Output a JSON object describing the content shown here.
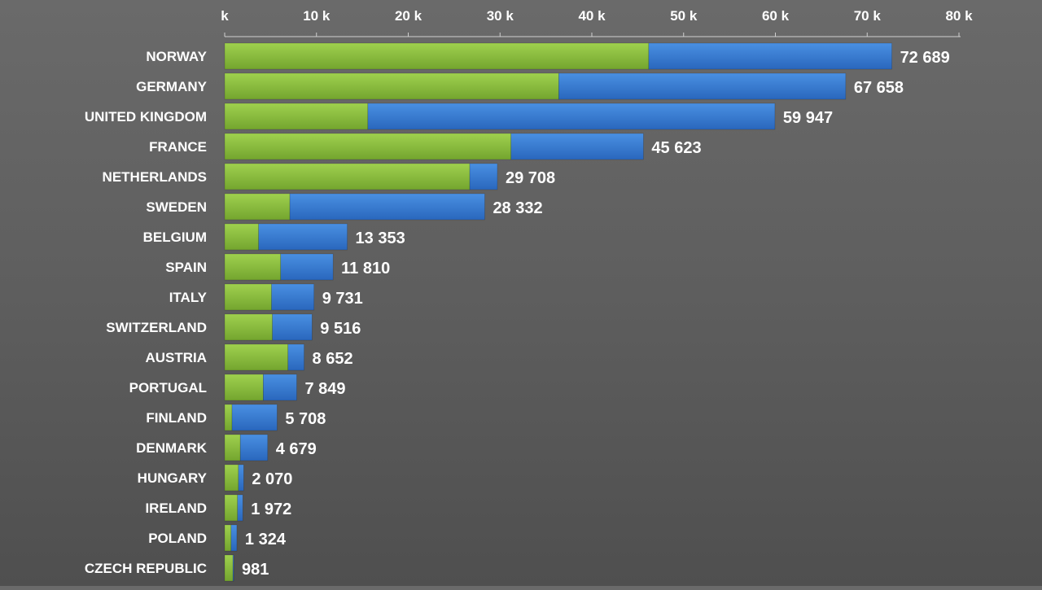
{
  "chart_data": {
    "type": "bar",
    "orientation": "horizontal",
    "stacked": true,
    "xlim": [
      0,
      80000
    ],
    "x_ticks": [
      0,
      10000,
      20000,
      30000,
      40000,
      50000,
      60000,
      70000,
      80000
    ],
    "x_tick_labels": [
      "k",
      "10 k",
      "20 k",
      "30 k",
      "40 k",
      "50 k",
      "60 k",
      "70 k",
      "80 k"
    ],
    "categories": [
      "NORWAY",
      "GERMANY",
      "UNITED KINGDOM",
      "FRANCE",
      "NETHERLANDS",
      "SWEDEN",
      "BELGIUM",
      "SPAIN",
      "ITALY",
      "SWITZERLAND",
      "AUSTRIA",
      "PORTUGAL",
      "FINLAND",
      "DENMARK",
      "HUNGARY",
      "IRELAND",
      "POLAND",
      "CZECH REPUBLIC"
    ],
    "series": [
      {
        "color": "#8cbf3f",
        "values": [
          46200,
          36400,
          15600,
          31200,
          26700,
          7100,
          3700,
          6100,
          5100,
          5200,
          6900,
          4200,
          800,
          1700,
          1500,
          1400,
          700,
          900
        ]
      },
      {
        "color": "#3a7fd5",
        "values": [
          26489,
          31258,
          44347,
          14423,
          3008,
          21232,
          9653,
          5710,
          4631,
          4316,
          1752,
          3649,
          4908,
          2979,
          570,
          572,
          624,
          81
        ]
      }
    ],
    "totals": [
      72689,
      67658,
      59947,
      45623,
      29708,
      28332,
      13353,
      11810,
      9731,
      9516,
      8652,
      7849,
      5708,
      4679,
      2070,
      1972,
      1324,
      981
    ],
    "total_labels": [
      "72 689",
      "67 658",
      "59 947",
      "45 623",
      "29 708",
      "28 332",
      "13 353",
      "11 810",
      "9 731",
      "9 516",
      "8 652",
      "7 849",
      "5 708",
      "4 679",
      "2 070",
      "1 972",
      "1 324",
      "981"
    ],
    "grid": false,
    "legend": "none"
  }
}
